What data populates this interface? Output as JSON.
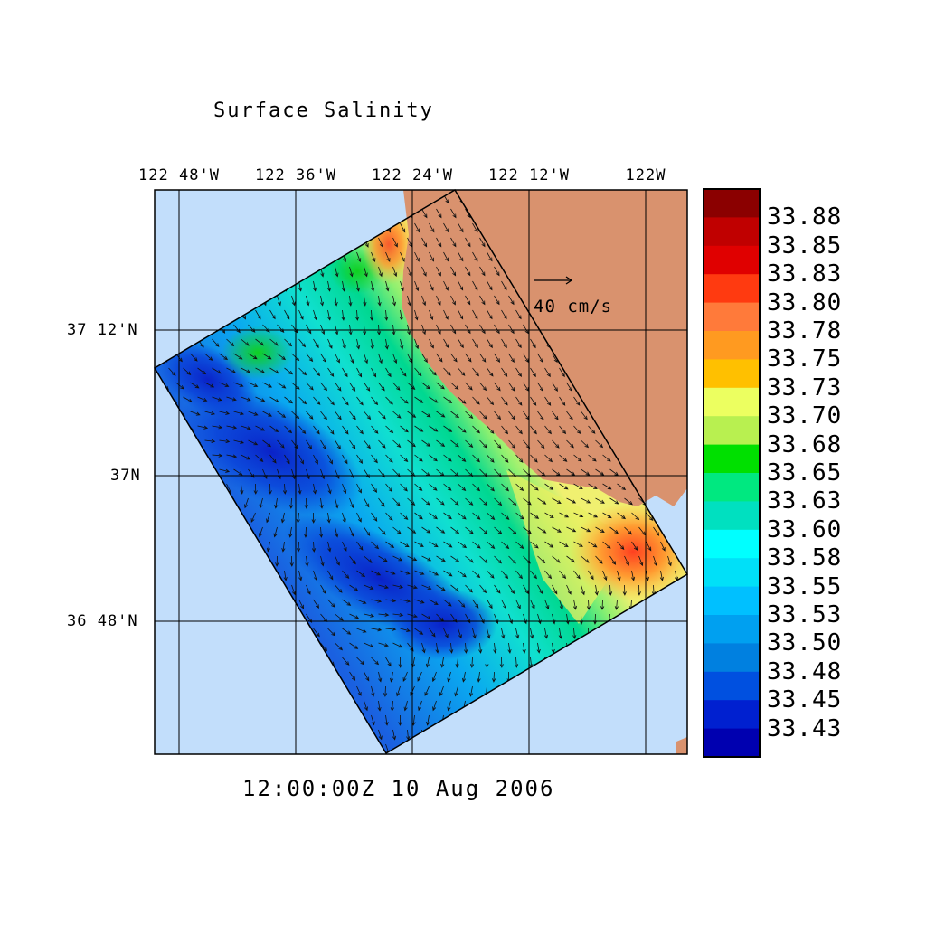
{
  "title": "Surface Salinity",
  "timestamp": "12:00:00Z  10 Aug 2006",
  "lon_labels": [
    "122 48'W",
    "122 36'W",
    "122 24'W",
    "122 12'W",
    "122W"
  ],
  "lat_labels": [
    "37 12'N",
    "37N",
    "36 48'N"
  ],
  "reference_vector": {
    "label": "40 cm/s",
    "value_cm_s": 40
  },
  "colorbar": {
    "labels": [
      "33.88",
      "33.85",
      "33.83",
      "33.80",
      "33.78",
      "33.75",
      "33.73",
      "33.70",
      "33.68",
      "33.65",
      "33.63",
      "33.60",
      "33.58",
      "33.55",
      "33.53",
      "33.50",
      "33.48",
      "33.45",
      "33.43"
    ],
    "colors": [
      "#8b0000",
      "#c00000",
      "#e00000",
      "#ff3a10",
      "#ff7a3a",
      "#ff9a20",
      "#ffc000",
      "#ecff60",
      "#b8f050",
      "#00e000",
      "#00e880",
      "#00e0c0",
      "#00ffff",
      "#00e0f8",
      "#00c0ff",
      "#00a0f0",
      "#0080e0",
      "#0050e0",
      "#0020d0",
      "#0000b0"
    ]
  },
  "colors": {
    "ocean": "#c2defb",
    "land": "#d9926e",
    "gridline": "#000000"
  }
}
